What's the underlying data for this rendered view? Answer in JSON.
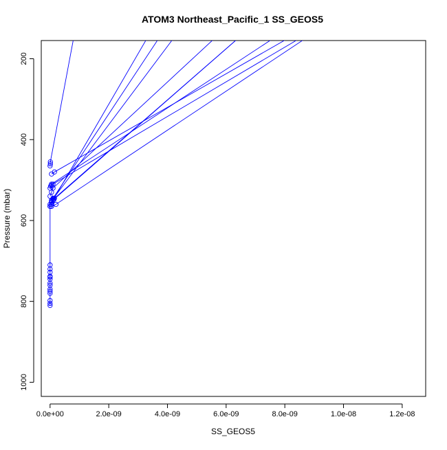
{
  "chart_data": {
    "type": "line",
    "title": "ATOM3 Northeast_Pacific_1 SS_GEOS5",
    "xlabel": "SS_GEOS5",
    "ylabel": "Pressure (mbar)",
    "xlim": [
      -3e-10,
      1.28e-08
    ],
    "ylim": [
      1035,
      155
    ],
    "y_inverted": true,
    "x_ticks": [
      0,
      2e-09,
      4e-09,
      6e-09,
      8e-09,
      1e-08,
      1.2e-08
    ],
    "x_tick_labels": [
      "0.0e+00",
      "2.0e-09",
      "4.0e-09",
      "6.0e-09",
      "8.0e-09",
      "1.0e-08",
      "1.2e-08"
    ],
    "y_ticks": [
      200,
      400,
      600,
      800,
      1000
    ],
    "y_tick_labels": [
      "200",
      "400",
      "600",
      "800",
      "1000"
    ],
    "grid": false,
    "legend": "none",
    "color": "#0000ff",
    "marker": "open-circle",
    "series": [
      {
        "values": [
          {
            "x": 8e-10,
            "y": 150
          },
          {
            "x": 1e-11,
            "y": 455
          },
          {
            "x": 1e-11,
            "y": 460
          },
          {
            "x": 0.0,
            "y": 465
          }
        ]
      },
      {
        "values": [
          {
            "x": 3.3e-09,
            "y": 150
          },
          {
            "x": 1e-10,
            "y": 550
          },
          {
            "x": 5e-11,
            "y": 560
          },
          {
            "x": 0.0,
            "y": 565
          }
        ]
      },
      {
        "values": [
          {
            "x": 4.2e-09,
            "y": 150
          },
          {
            "x": 1.2e-10,
            "y": 545
          },
          {
            "x": 5e-11,
            "y": 555
          },
          {
            "x": 0.0,
            "y": 560
          }
        ]
      },
      {
        "values": [
          {
            "x": 5.6e-09,
            "y": 150
          },
          {
            "x": 1e-10,
            "y": 520
          },
          {
            "x": 5e-11,
            "y": 530
          },
          {
            "x": 0.0,
            "y": 540
          }
        ]
      },
      {
        "values": [
          {
            "x": 6.4e-09,
            "y": 150
          },
          {
            "x": 1.3e-10,
            "y": 548
          },
          {
            "x": 5e-11,
            "y": 555
          }
        ]
      },
      {
        "values": [
          {
            "x": 6.4e-09,
            "y": 150
          },
          {
            "x": 1.5e-10,
            "y": 545
          },
          {
            "x": 5e-11,
            "y": 552
          }
        ]
      },
      {
        "values": [
          {
            "x": 7.6e-09,
            "y": 150
          },
          {
            "x": 5e-11,
            "y": 510
          },
          {
            "x": 2e-11,
            "y": 515
          },
          {
            "x": 0.0,
            "y": 520
          }
        ]
      },
      {
        "values": [
          {
            "x": 8.1e-09,
            "y": 150
          },
          {
            "x": 1.5e-10,
            "y": 480
          },
          {
            "x": 5e-11,
            "y": 485
          }
        ]
      },
      {
        "values": [
          {
            "x": 8.5e-09,
            "y": 150
          },
          {
            "x": 1e-10,
            "y": 510
          },
          {
            "x": 5e-11,
            "y": 513
          }
        ]
      },
      {
        "values": [
          {
            "x": 8.7e-09,
            "y": 150
          },
          {
            "x": 2e-10,
            "y": 560
          },
          {
            "x": 5e-11,
            "y": 565
          }
        ]
      },
      {
        "values": [
          {
            "x": 3.7e-09,
            "y": 150
          },
          {
            "x": 1e-10,
            "y": 545
          },
          {
            "x": 5e-11,
            "y": 550
          }
        ]
      },
      {
        "values": [
          {
            "x": 0.0,
            "y": 565
          },
          {
            "x": 0.0,
            "y": 710
          },
          {
            "x": 0.0,
            "y": 720
          },
          {
            "x": 0.0,
            "y": 728
          },
          {
            "x": 0.0,
            "y": 738
          },
          {
            "x": 0.0,
            "y": 740
          },
          {
            "x": 0.0,
            "y": 745
          },
          {
            "x": 0.0,
            "y": 755
          },
          {
            "x": 0.0,
            "y": 760
          },
          {
            "x": 0.0,
            "y": 770
          },
          {
            "x": 0.0,
            "y": 775
          },
          {
            "x": 0.0,
            "y": 780
          },
          {
            "x": 0.0,
            "y": 798
          },
          {
            "x": 0.0,
            "y": 805
          },
          {
            "x": 0.0,
            "y": 810
          }
        ]
      }
    ]
  }
}
